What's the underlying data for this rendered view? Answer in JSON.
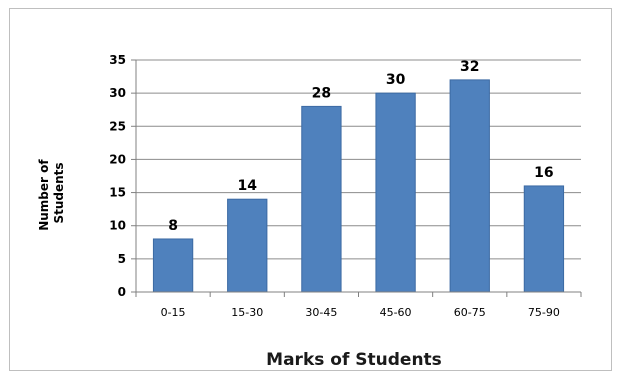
{
  "chart_data": {
    "type": "bar",
    "categories": [
      "0-15",
      "15-30",
      "30-45",
      "45-60",
      "60-75",
      "75-90"
    ],
    "values": [
      8,
      14,
      28,
      30,
      32,
      16
    ],
    "data_labels": [
      "8",
      "14",
      "28",
      "30",
      "32",
      "16"
    ],
    "xlabel": "Marks of Students",
    "ylabel": [
      "Number of",
      "Students"
    ],
    "ylim": [
      0,
      35
    ],
    "yticks": [
      0,
      5,
      10,
      15,
      20,
      25,
      30,
      35
    ],
    "ytick_labels": [
      "0",
      "5",
      "10",
      "15",
      "20",
      "25",
      "30",
      "35"
    ],
    "grid": true,
    "legend": "none",
    "colors": {
      "bar": "#4f81bd",
      "bar_edge": "#3c6aa3",
      "grid": "#8c8c8c",
      "axis": "#808080"
    }
  }
}
